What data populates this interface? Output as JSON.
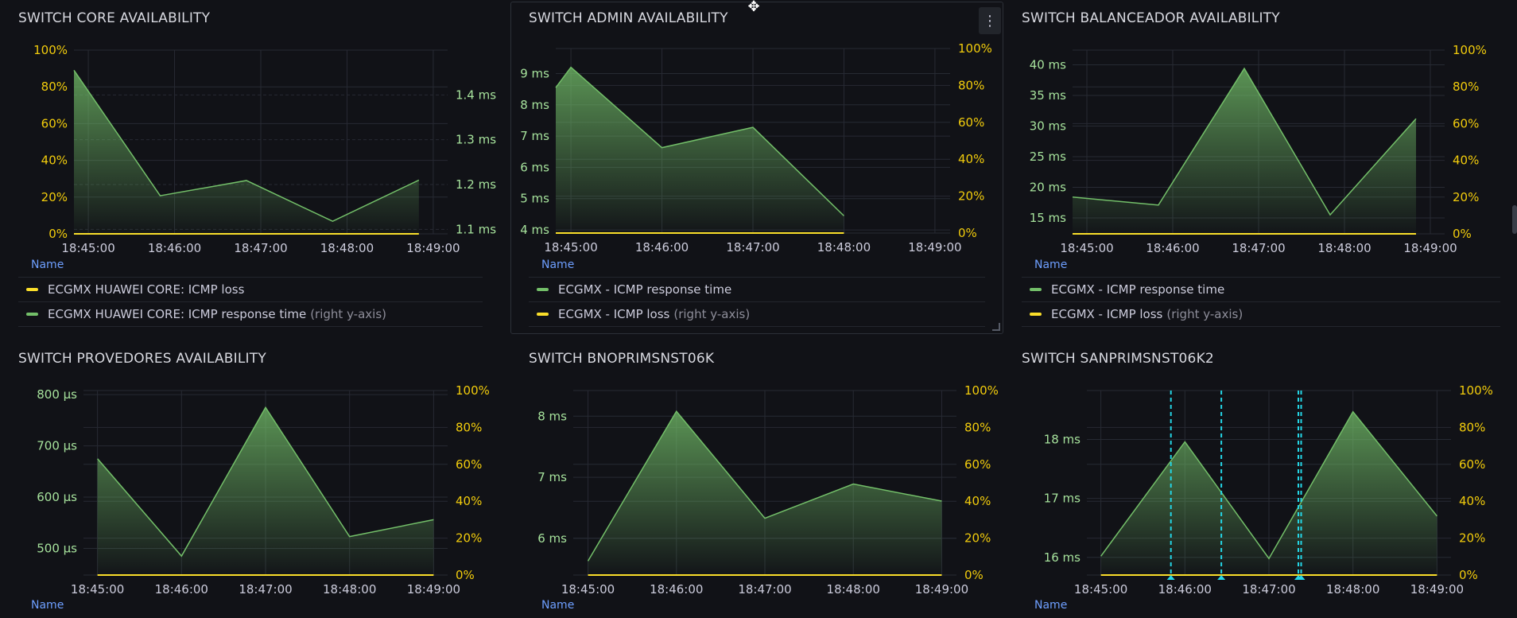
{
  "colors": {
    "green": "#73bf69",
    "yellow": "#fade2a",
    "cyan": "#24d6e6",
    "green_label": "#a6e29c",
    "yellow_label": "#f2cc0c"
  },
  "x_ticks": [
    "18:45:00",
    "18:46:00",
    "18:47:00",
    "18:48:00",
    "18:49:00"
  ],
  "legend_name_label": "Name",
  "right_axis_note": "(right y-axis)",
  "panels": [
    {
      "title": "SWITCH CORE AVAILABILITY",
      "legend": [
        {
          "label": "ECGMX HUAWEI CORE: ICMP loss",
          "color": "#fade2a",
          "right_axis": false
        },
        {
          "label": "ECGMX HUAWEI CORE: ICMP response time",
          "color": "#73bf69",
          "right_axis": true
        }
      ],
      "chart_data": {
        "type": "area",
        "x": [
          "18:44:50",
          "18:45:50",
          "18:46:50",
          "18:47:50",
          "18:48:50"
        ],
        "left_axis": {
          "ticks": [
            "0%",
            "20%",
            "40%",
            "60%",
            "80%",
            "100%"
          ],
          "range": [
            0,
            100
          ],
          "color": "yellow"
        },
        "right_axis": {
          "ticks": [
            "1.1 ms",
            "1.2 ms",
            "1.3 ms",
            "1.4 ms"
          ],
          "range": [
            1.09,
            1.5
          ],
          "tick_values": [
            1.1,
            1.2,
            1.3,
            1.4
          ],
          "color": "green"
        },
        "series": [
          {
            "name": "ECGMX HUAWEI CORE: ICMP loss",
            "axis": "left",
            "color": "yellow",
            "values": [
              0,
              0,
              0,
              0,
              0
            ]
          },
          {
            "name": "ECGMX HUAWEI CORE: ICMP response time",
            "axis": "right",
            "color": "green",
            "fill": true,
            "values": [
              1.455,
              1.175,
              1.209,
              1.118,
              1.21
            ]
          }
        ]
      }
    },
    {
      "title": "SWITCH ADMIN AVAILABILITY",
      "legend": [
        {
          "label": "ECGMX - ICMP response time",
          "color": "#73bf69",
          "right_axis": false
        },
        {
          "label": "ECGMX - ICMP loss",
          "color": "#fade2a",
          "right_axis": true
        }
      ],
      "chart_data": {
        "type": "area",
        "x": [
          "18:44:50",
          "18:45:00",
          "18:46:00",
          "18:47:00",
          "18:48:00"
        ],
        "left_axis": {
          "ticks": [
            "4 ms",
            "5 ms",
            "6 ms",
            "7 ms",
            "8 ms",
            "9 ms"
          ],
          "range": [
            3.9,
            9.8
          ],
          "tick_values": [
            4,
            5,
            6,
            7,
            8,
            9
          ],
          "color": "green"
        },
        "right_axis": {
          "ticks": [
            "0%",
            "20%",
            "40%",
            "60%",
            "80%",
            "100%"
          ],
          "range": [
            0,
            100
          ],
          "color": "yellow"
        },
        "series": [
          {
            "name": "ECGMX - ICMP response time",
            "axis": "left",
            "color": "green",
            "fill": true,
            "values": [
              8.55,
              9.2,
              6.63,
              7.28,
              4.45
            ]
          },
          {
            "name": "ECGMX - ICMP loss",
            "axis": "right",
            "color": "yellow",
            "values": [
              0,
              0,
              0,
              0,
              0
            ]
          }
        ]
      }
    },
    {
      "title": "SWITCH BALANCEADOR AVAILABILITY",
      "legend": [
        {
          "label": "ECGMX - ICMP response time",
          "color": "#73bf69",
          "right_axis": false
        },
        {
          "label": "ECGMX - ICMP loss",
          "color": "#fade2a",
          "right_axis": true
        }
      ],
      "chart_data": {
        "type": "area",
        "x": [
          "18:44:50",
          "18:45:50",
          "18:46:50",
          "18:47:50",
          "18:48:50"
        ],
        "left_axis": {
          "ticks": [
            "15 ms",
            "20 ms",
            "25 ms",
            "30 ms",
            "35 ms",
            "40 ms"
          ],
          "range": [
            12.4,
            42.4
          ],
          "tick_values": [
            15,
            20,
            25,
            30,
            35,
            40
          ],
          "color": "green"
        },
        "right_axis": {
          "ticks": [
            "0%",
            "20%",
            "40%",
            "60%",
            "80%",
            "100%"
          ],
          "range": [
            0,
            100
          ],
          "color": "yellow"
        },
        "series": [
          {
            "name": "ECGMX - ICMP response time",
            "axis": "left",
            "color": "green",
            "fill": true,
            "values": [
              18.4,
              17.1,
              39.4,
              15.5,
              31.2
            ]
          },
          {
            "name": "ECGMX - ICMP loss",
            "axis": "right",
            "color": "yellow",
            "values": [
              0,
              0,
              0,
              0,
              0
            ]
          }
        ]
      }
    },
    {
      "title": "SWITCH PROVEDORES AVAILABILITY",
      "legend_name_only": true,
      "chart_data": {
        "type": "area",
        "x": [
          "18:45:00",
          "18:46:00",
          "18:47:00",
          "18:48:00",
          "18:49:00"
        ],
        "left_axis": {
          "ticks": [
            "500 µs",
            "600 µs",
            "700 µs",
            "800 µs"
          ],
          "range": [
            448,
            808
          ],
          "tick_values": [
            500,
            600,
            700,
            800
          ],
          "color": "green"
        },
        "right_axis": {
          "ticks": [
            "0%",
            "20%",
            "40%",
            "60%",
            "80%",
            "100%"
          ],
          "range": [
            0,
            100
          ],
          "color": "yellow"
        },
        "series": [
          {
            "axis": "left",
            "color": "green",
            "fill": true,
            "values": [
              675,
              485,
              775,
              523,
              556
            ]
          },
          {
            "axis": "right",
            "color": "yellow",
            "values": [
              0,
              0,
              0,
              0,
              0
            ]
          }
        ]
      }
    },
    {
      "title": "SWITCH BNOPRIMSNST06K",
      "legend_name_only": true,
      "chart_data": {
        "type": "area",
        "x": [
          "18:45:00",
          "18:46:00",
          "18:47:00",
          "18:48:00",
          "18:49:00"
        ],
        "left_axis": {
          "ticks": [
            "6 ms",
            "7 ms",
            "8 ms"
          ],
          "range": [
            5.4,
            8.42
          ],
          "tick_values": [
            6,
            7,
            8
          ],
          "color": "green"
        },
        "right_axis": {
          "ticks": [
            "0%",
            "20%",
            "40%",
            "60%",
            "80%",
            "100%"
          ],
          "range": [
            0,
            100
          ],
          "color": "yellow"
        },
        "series": [
          {
            "axis": "left",
            "color": "green",
            "fill": true,
            "values": [
              5.63,
              8.08,
              6.33,
              6.89,
              6.61
            ]
          },
          {
            "axis": "right",
            "color": "yellow",
            "values": [
              0,
              0,
              0,
              0,
              0
            ]
          }
        ]
      }
    },
    {
      "title": "SWITCH SANPRIMSNST06K2",
      "legend_name_only": true,
      "chart_data": {
        "type": "area",
        "x": [
          "18:45:00",
          "18:46:00",
          "18:47:00",
          "18:48:00",
          "18:49:00"
        ],
        "left_axis": {
          "ticks": [
            "16 ms",
            "17 ms",
            "18 ms"
          ],
          "range": [
            15.7,
            18.83
          ],
          "tick_values": [
            16,
            17,
            18
          ],
          "color": "green"
        },
        "right_axis": {
          "ticks": [
            "0%",
            "20%",
            "40%",
            "60%",
            "80%",
            "100%"
          ],
          "range": [
            0,
            100
          ],
          "color": "yellow"
        },
        "series": [
          {
            "axis": "left",
            "color": "green",
            "fill": true,
            "values": [
              16.02,
              17.96,
              15.98,
              18.47,
              16.7
            ]
          },
          {
            "axis": "right",
            "color": "yellow",
            "values": [
              0,
              0,
              0,
              0,
              0
            ]
          }
        ],
        "annotations": [
          "18:45:50",
          "18:46:26",
          "18:47:21",
          "18:47:23"
        ]
      }
    }
  ]
}
